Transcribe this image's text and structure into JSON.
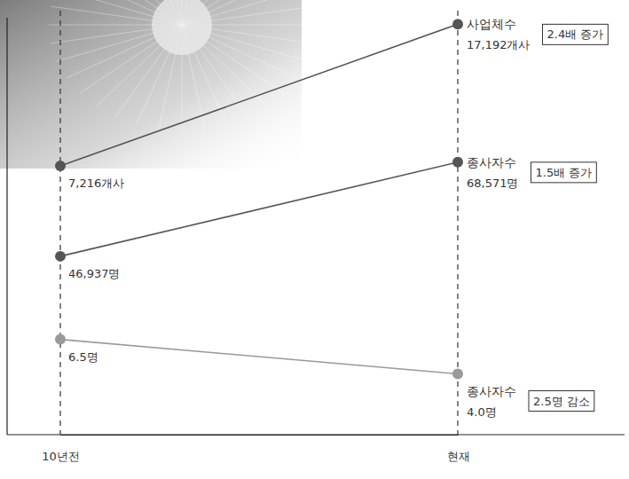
{
  "chart_data": {
    "type": "line",
    "categories": [
      "10년전",
      "현재"
    ],
    "grid": true,
    "data_labels": true,
    "tick_labels": "x",
    "series": [
      {
        "name": "사업체수",
        "color": "#555555",
        "marker": "circle",
        "line_style": "solid",
        "values": [
          7216,
          17192
        ],
        "value_labels": [
          "7,216개사",
          "17,192개사"
        ],
        "ylim": [
          -11700,
          17650
        ]
      },
      {
        "name": "종사자수",
        "color": "#555555",
        "marker": "circle",
        "line_style": "solid",
        "values": [
          46937,
          68571
        ],
        "value_labels": [
          "46,937명",
          "68,571명"
        ],
        "ylim": [
          5900,
          101800
        ]
      },
      {
        "name": "종사자수",
        "color": "#9a9a9a",
        "marker": "circle",
        "line_style": "solid",
        "values": [
          6.5,
          4.0
        ],
        "value_labels": [
          "6.5명",
          "4.0명"
        ],
        "ylim": [
          -0.4,
          29.8
        ]
      }
    ],
    "annotations": [
      "2.4배 증가",
      "1.5배 증가",
      "2.5명 감소"
    ]
  }
}
